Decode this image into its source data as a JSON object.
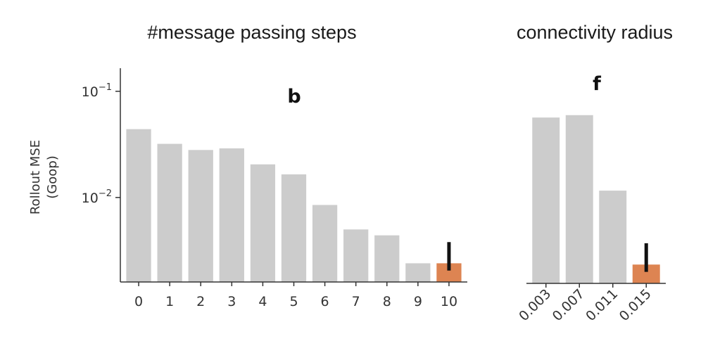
{
  "chart_data": [
    {
      "type": "bar",
      "title": "#message passing steps",
      "panel_label": "b",
      "ylabel": "Rollout MSE",
      "ylabel2": "(Goop)",
      "yscale": "log",
      "ylim": [
        0.0016,
        0.16
      ],
      "yticks": [
        {
          "value": 0.1,
          "base": "10",
          "exp": "−1"
        },
        {
          "value": 0.01,
          "base": "10",
          "exp": "−2"
        }
      ],
      "categories": [
        "0",
        "1",
        "2",
        "3",
        "4",
        "5",
        "6",
        "7",
        "8",
        "9",
        "10"
      ],
      "values": [
        0.044,
        0.032,
        0.028,
        0.029,
        0.0205,
        0.0165,
        0.0085,
        0.005,
        0.0044,
        0.0024,
        0.0024
      ],
      "highlight_index": 10,
      "error_bar": {
        "index": 10,
        "low": 0.00205,
        "high": 0.0038
      },
      "bar_color": "#cccccc",
      "highlight_color": "#dd8452"
    },
    {
      "type": "bar",
      "title": "connectivity radius",
      "panel_label": "f",
      "yscale": "log",
      "ylim": [
        0.0016,
        0.16
      ],
      "categories": [
        "0.003",
        "0.007",
        "0.011",
        "0.015"
      ],
      "values": [
        0.057,
        0.06,
        0.0118,
        0.0024
      ],
      "highlight_index": 3,
      "error_bar": {
        "index": 3,
        "low": 0.00205,
        "high": 0.0038
      },
      "bar_color": "#cccccc",
      "highlight_color": "#dd8452"
    }
  ]
}
